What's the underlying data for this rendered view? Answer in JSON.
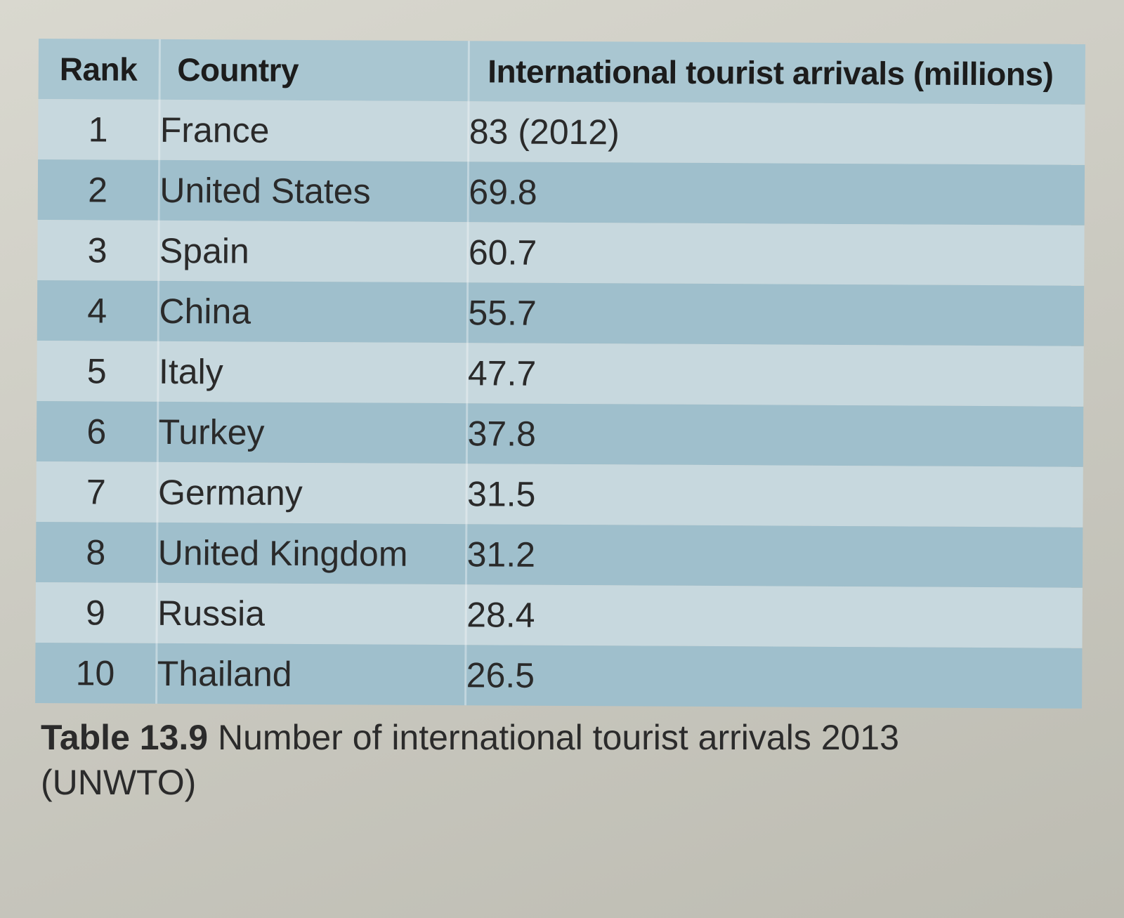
{
  "table": {
    "headers": {
      "rank": "Rank",
      "country": "Country",
      "arrivals": "International tourist arrivals (millions)"
    },
    "rows": [
      {
        "rank": "1",
        "country": "France",
        "arrivals": "83 (2012)"
      },
      {
        "rank": "2",
        "country": "United States",
        "arrivals": "69.8"
      },
      {
        "rank": "3",
        "country": "Spain",
        "arrivals": "60.7"
      },
      {
        "rank": "4",
        "country": "China",
        "arrivals": "55.7"
      },
      {
        "rank": "5",
        "country": "Italy",
        "arrivals": "47.7"
      },
      {
        "rank": "6",
        "country": "Turkey",
        "arrivals": "37.8"
      },
      {
        "rank": "7",
        "country": "Germany",
        "arrivals": "31.5"
      },
      {
        "rank": "8",
        "country": "United Kingdom",
        "arrivals": "31.2"
      },
      {
        "rank": "9",
        "country": "Russia",
        "arrivals": "28.4"
      },
      {
        "rank": "10",
        "country": "Thailand",
        "arrivals": "26.5"
      }
    ]
  },
  "caption": {
    "label": "Table 13.9",
    "text": "Number of international tourist arrivals 2013 (UNWTO)"
  },
  "colors": {
    "header_band": "#a9c6d1",
    "row_light": "#c7d8de",
    "row_dark": "#9fbfcc",
    "page": "#d9d8cf"
  }
}
